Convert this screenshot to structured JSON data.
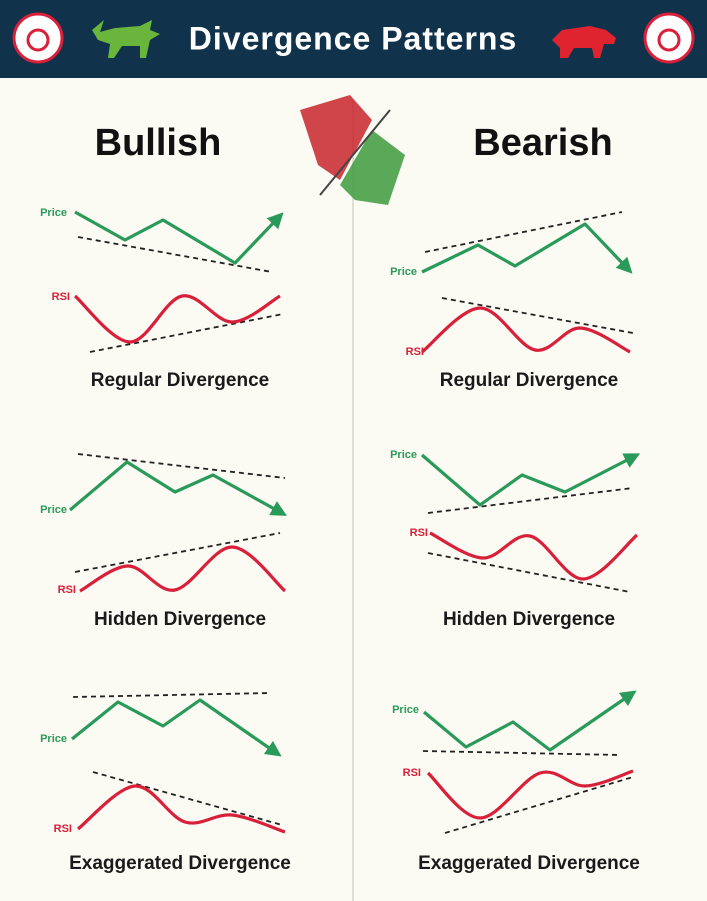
{
  "header": {
    "title": "Divergence Patterns"
  },
  "columns": [
    {
      "title": "Bullish",
      "patterns": [
        {
          "price_label": "Price",
          "rsi_label": "RSI",
          "caption": "Regular Divergence"
        },
        {
          "price_label": "Price",
          "rsi_label": "RSI",
          "caption": "Hidden Divergence"
        },
        {
          "price_label": "Price",
          "rsi_label": "RSI",
          "caption": "Exaggerated Divergence"
        }
      ]
    },
    {
      "title": "Bearish",
      "patterns": [
        {
          "price_label": "Price",
          "rsi_label": "RSI",
          "caption": "Regular Divergence"
        },
        {
          "price_label": "Price",
          "rsi_label": "RSI",
          "caption": "Hidden Divergence"
        },
        {
          "price_label": "Price",
          "rsi_label": "RSI",
          "caption": "Exaggerated Divergence"
        }
      ]
    }
  ]
}
